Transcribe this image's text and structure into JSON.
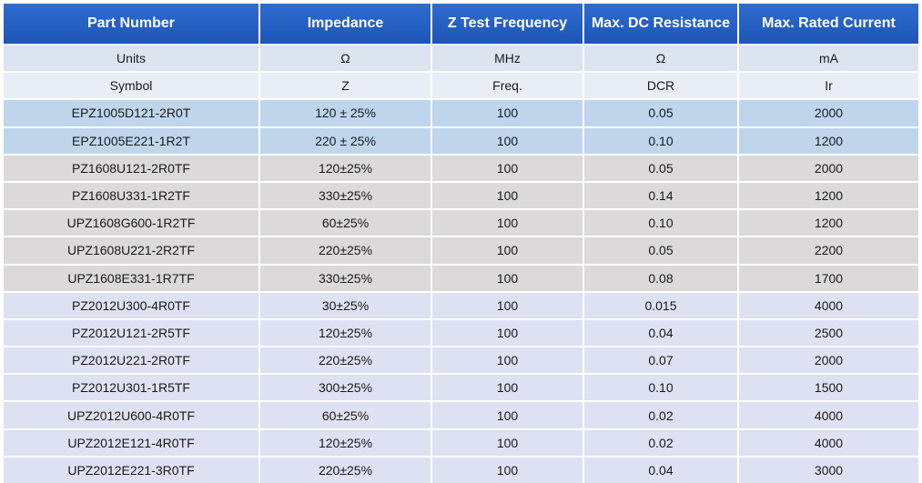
{
  "table": {
    "headers": [
      "Part Number",
      "Impedance",
      "Z Test Frequency",
      "Max. DC Resistance",
      "Max. Rated Current"
    ],
    "units": [
      "Units",
      "Ω",
      "MHz",
      "Ω",
      "mA"
    ],
    "symbols": [
      "Symbol",
      "Z",
      "Freq.",
      "DCR",
      "Ir"
    ],
    "rows": [
      {
        "group": "blue",
        "cells": [
          "EPZ1005D121-2R0T",
          "120 ± 25%",
          "100",
          "0.05",
          "2000"
        ]
      },
      {
        "group": "blue",
        "cells": [
          "EPZ1005E221-1R2T",
          "220 ± 25%",
          "100",
          "0.10",
          "1200"
        ]
      },
      {
        "group": "gray",
        "cells": [
          "PZ1608U121-2R0TF",
          "120±25%",
          "100",
          "0.05",
          "2000"
        ]
      },
      {
        "group": "gray",
        "cells": [
          "PZ1608U331-1R2TF",
          "330±25%",
          "100",
          "0.14",
          "1200"
        ]
      },
      {
        "group": "gray",
        "cells": [
          "UPZ1608G600-1R2TF",
          "60±25%",
          "100",
          "0.10",
          "1200"
        ]
      },
      {
        "group": "gray",
        "cells": [
          "UPZ1608U221-2R2TF",
          "220±25%",
          "100",
          "0.05",
          "2200"
        ]
      },
      {
        "group": "gray",
        "cells": [
          "UPZ1608E331-1R7TF",
          "330±25%",
          "100",
          "0.08",
          "1700"
        ]
      },
      {
        "group": "lavender",
        "cells": [
          "PZ2012U300-4R0TF",
          "30±25%",
          "100",
          "0.015",
          "4000"
        ]
      },
      {
        "group": "lavender",
        "cells": [
          "PZ2012U121-2R5TF",
          "120±25%",
          "100",
          "0.04",
          "2500"
        ]
      },
      {
        "group": "lavender",
        "cells": [
          "PZ2012U221-2R0TF",
          "220±25%",
          "100",
          "0.07",
          "2000"
        ]
      },
      {
        "group": "lavender",
        "cells": [
          "PZ2012U301-1R5TF",
          "300±25%",
          "100",
          "0.10",
          "1500"
        ]
      },
      {
        "group": "lavender",
        "cells": [
          "UPZ2012U600-4R0TF",
          "60±25%",
          "100",
          "0.02",
          "4000"
        ]
      },
      {
        "group": "lavender",
        "cells": [
          "UPZ2012E121-4R0TF",
          "120±25%",
          "100",
          "0.02",
          "4000"
        ]
      },
      {
        "group": "lavender",
        "cells": [
          "UPZ2012E221-3R0TF",
          "220±25%",
          "100",
          "0.04",
          "3000"
        ]
      }
    ]
  },
  "colors": {
    "header_bg": "#2461c4",
    "units_bg": "#dce4f0",
    "symbol_bg": "#e9edf5",
    "group_blue": "#bed5ec",
    "group_gray": "#dcd9db",
    "group_lavender": "#dde1f1"
  }
}
